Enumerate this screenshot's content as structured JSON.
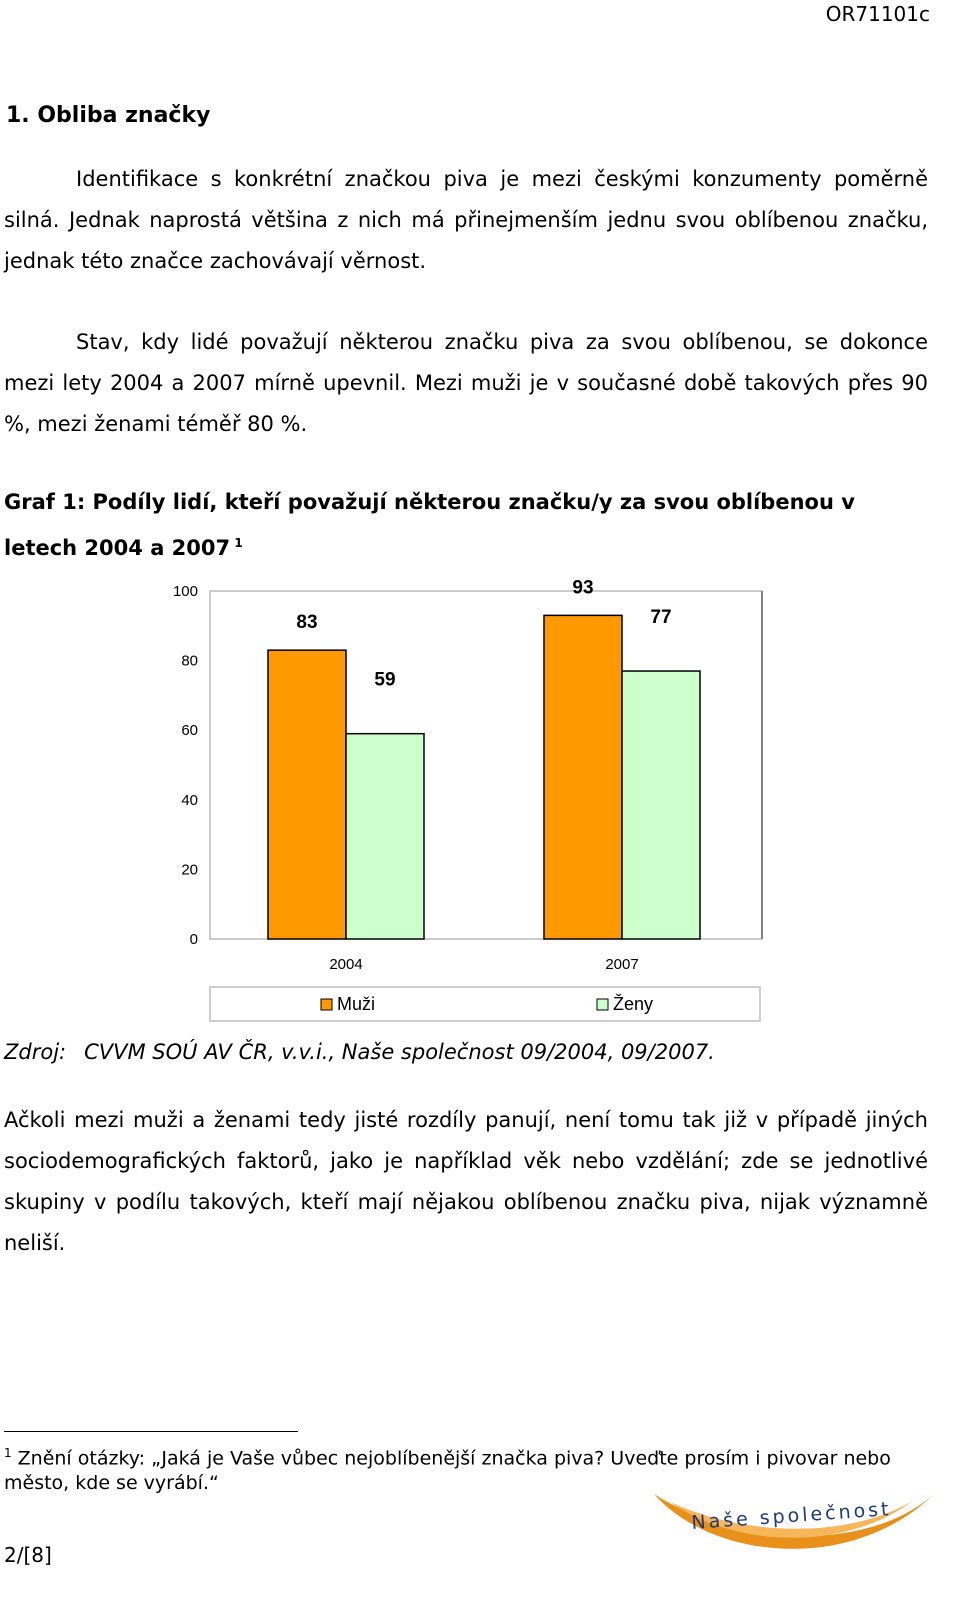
{
  "header": {
    "doc_code": "OR71101c"
  },
  "section": {
    "heading": "1. Obliba značky"
  },
  "paragraphs": {
    "p1": "Identifikace s konkrétní značkou piva je mezi českými konzumenty poměrně silná. Jednak naprostá většina z nich má přinejmenším jednu svou oblíbenou značku, jednak této značce zachovávají věrnost.",
    "p2": "Stav, kdy lidé považují některou značku piva za svou oblíbenou, se dokonce mezi lety 2004 a 2007 mírně upevnil. Mezi muži je v současné době takových přes 90 %, mezi ženami téměř 80 %.",
    "p4": "Ačkoli mezi muži a ženami tedy jisté rozdíly panují, není tomu tak již v případě jiných sociodemografických faktorů, jako je například věk nebo vzdělání; zde se jednotlivé skupiny v podílu takových, kteří mají nějakou oblíbenou značku piva, nijak významně neliší."
  },
  "figure": {
    "caption": "Graf 1: Podíly lidí, kteří považují některou značku/y za svou oblíbenou v letech 2004 a 2007",
    "footnote_ref": "1",
    "source_label": "Zdroj:",
    "source_text": "CVVM SOÚ AV ČR, v.v.i., Naše společnost 09/2004, 09/2007."
  },
  "chart_data": {
    "type": "bar",
    "categories": [
      "2004",
      "2007"
    ],
    "series": [
      {
        "name": "Muži",
        "values": [
          83,
          93
        ],
        "color": "#ff9900"
      },
      {
        "name": "Ženy",
        "values": [
          59,
          77
        ],
        "color": "#ccffcc"
      }
    ],
    "ylim": [
      0,
      100
    ],
    "yticks": [
      "0",
      "20",
      "40",
      "60",
      "80",
      "100"
    ],
    "legend_placement": "bottom",
    "grid": false
  },
  "footnote": {
    "number": "1",
    "text": "Znění otázky: „Jaká je Vaše vůbec nejoblíbenější značka piva? Uveďte prosím i pivovar nebo město, kde se vyrábí.“"
  },
  "footer": {
    "page_number": "2/[8]"
  },
  "logo": {
    "text": "Naše společnost",
    "icon": "nase-spolecnost-logo",
    "color": "#e8901a",
    "text_color": "#1a3a7a"
  }
}
